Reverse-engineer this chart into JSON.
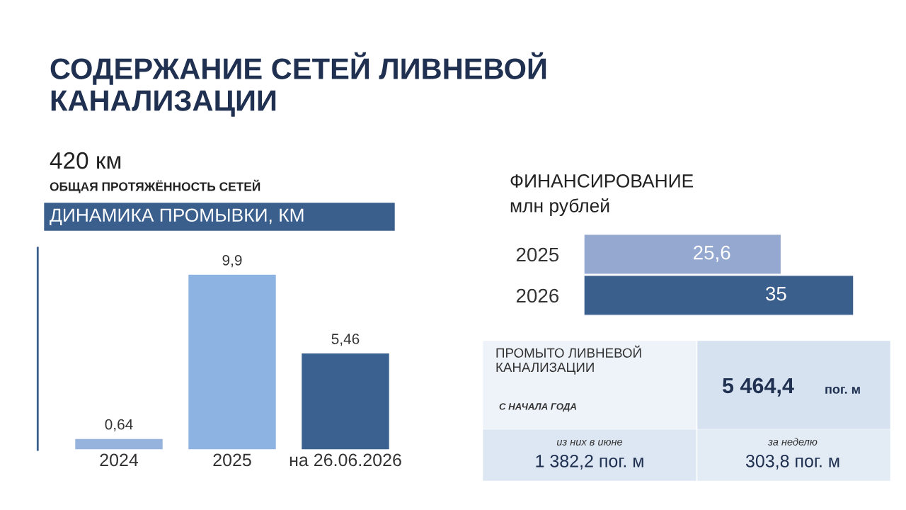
{
  "chart_data": [
    {
      "type": "bar",
      "title": "СОДЕРЖАНИЕ СЕТЕЙ ЛИВНЕВОЙ\nКАНАЛИЗАЦИИ",
      "subtitle": "420 км",
      "annotations": [
        "ОБЩАЯ ПРОТЯЖЁННОСТЬ СЕТЕЙ",
        "ДИНАМИКА ПРОМЫВКИ, КМ"
      ],
      "categories": [
        "2024",
        "2025",
        "на 26.06.2026"
      ],
      "values": [
        0.64,
        9.9,
        5.46
      ],
      "colors": [
        "#95b3dc",
        "#8db3e2",
        "#3b6190"
      ],
      "value_labels": [
        "0,64",
        "9,9",
        "5,46"
      ],
      "tick_labels": "x"
    },
    {
      "type": "bar",
      "orientation": "horizontal",
      "title": "ФИНАНСИРОВАНИЕ",
      "subtitle": "млн рублей",
      "categories": [
        "2025",
        "2026"
      ],
      "values": [
        25.6,
        35
      ],
      "colors": [
        "#95a9d0",
        "#3b5f8c"
      ],
      "value_labels": [
        "25,6",
        "35"
      ],
      "tick_labels": "y"
    },
    {
      "type": "other",
      "annotations": [
        "ПРОМЫТО ЛИВНЕВОЙ\nКАНАЛИЗАЦИИ",
        "С НАЧАЛА ГОДА",
        "5 464,4",
        "пог. м",
        "из них в июне",
        "1 382,2 пог. м",
        "за неделю",
        "303,8 пог. м"
      ]
    }
  ]
}
